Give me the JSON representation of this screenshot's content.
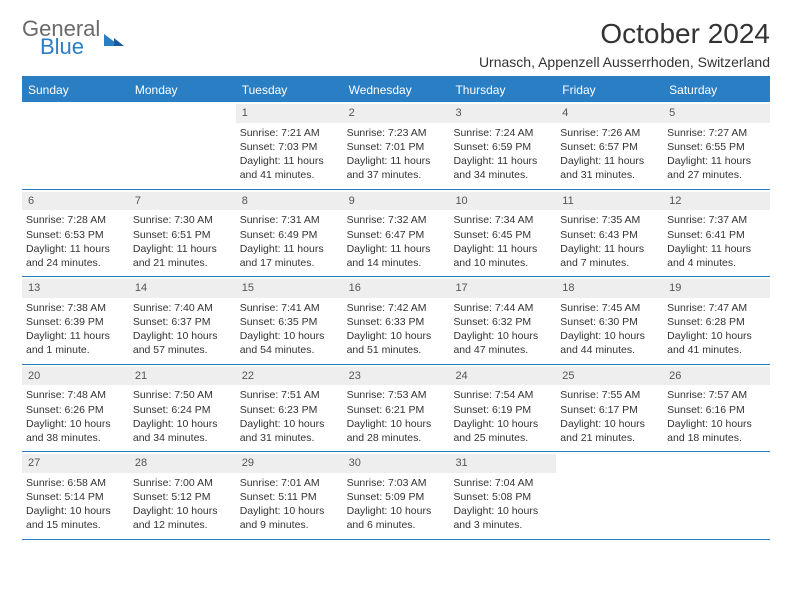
{
  "logo": {
    "word1": "General",
    "word2": "Blue"
  },
  "title": "October 2024",
  "subtitle": "Urnasch, Appenzell Ausserrhoden, Switzerland",
  "colors": {
    "accent": "#2a7ec4",
    "dow_bg": "#2a7ec4",
    "dow_text": "#ffffff",
    "daybar_bg": "#eeeeee",
    "text": "#333333"
  },
  "days_of_week": [
    "Sunday",
    "Monday",
    "Tuesday",
    "Wednesday",
    "Thursday",
    "Friday",
    "Saturday"
  ],
  "weeks": [
    [
      {
        "n": "",
        "sunrise": "",
        "sunset": "",
        "daylight": ""
      },
      {
        "n": "",
        "sunrise": "",
        "sunset": "",
        "daylight": ""
      },
      {
        "n": "1",
        "sunrise": "Sunrise: 7:21 AM",
        "sunset": "Sunset: 7:03 PM",
        "daylight": "Daylight: 11 hours and 41 minutes."
      },
      {
        "n": "2",
        "sunrise": "Sunrise: 7:23 AM",
        "sunset": "Sunset: 7:01 PM",
        "daylight": "Daylight: 11 hours and 37 minutes."
      },
      {
        "n": "3",
        "sunrise": "Sunrise: 7:24 AM",
        "sunset": "Sunset: 6:59 PM",
        "daylight": "Daylight: 11 hours and 34 minutes."
      },
      {
        "n": "4",
        "sunrise": "Sunrise: 7:26 AM",
        "sunset": "Sunset: 6:57 PM",
        "daylight": "Daylight: 11 hours and 31 minutes."
      },
      {
        "n": "5",
        "sunrise": "Sunrise: 7:27 AM",
        "sunset": "Sunset: 6:55 PM",
        "daylight": "Daylight: 11 hours and 27 minutes."
      }
    ],
    [
      {
        "n": "6",
        "sunrise": "Sunrise: 7:28 AM",
        "sunset": "Sunset: 6:53 PM",
        "daylight": "Daylight: 11 hours and 24 minutes."
      },
      {
        "n": "7",
        "sunrise": "Sunrise: 7:30 AM",
        "sunset": "Sunset: 6:51 PM",
        "daylight": "Daylight: 11 hours and 21 minutes."
      },
      {
        "n": "8",
        "sunrise": "Sunrise: 7:31 AM",
        "sunset": "Sunset: 6:49 PM",
        "daylight": "Daylight: 11 hours and 17 minutes."
      },
      {
        "n": "9",
        "sunrise": "Sunrise: 7:32 AM",
        "sunset": "Sunset: 6:47 PM",
        "daylight": "Daylight: 11 hours and 14 minutes."
      },
      {
        "n": "10",
        "sunrise": "Sunrise: 7:34 AM",
        "sunset": "Sunset: 6:45 PM",
        "daylight": "Daylight: 11 hours and 10 minutes."
      },
      {
        "n": "11",
        "sunrise": "Sunrise: 7:35 AM",
        "sunset": "Sunset: 6:43 PM",
        "daylight": "Daylight: 11 hours and 7 minutes."
      },
      {
        "n": "12",
        "sunrise": "Sunrise: 7:37 AM",
        "sunset": "Sunset: 6:41 PM",
        "daylight": "Daylight: 11 hours and 4 minutes."
      }
    ],
    [
      {
        "n": "13",
        "sunrise": "Sunrise: 7:38 AM",
        "sunset": "Sunset: 6:39 PM",
        "daylight": "Daylight: 11 hours and 1 minute."
      },
      {
        "n": "14",
        "sunrise": "Sunrise: 7:40 AM",
        "sunset": "Sunset: 6:37 PM",
        "daylight": "Daylight: 10 hours and 57 minutes."
      },
      {
        "n": "15",
        "sunrise": "Sunrise: 7:41 AM",
        "sunset": "Sunset: 6:35 PM",
        "daylight": "Daylight: 10 hours and 54 minutes."
      },
      {
        "n": "16",
        "sunrise": "Sunrise: 7:42 AM",
        "sunset": "Sunset: 6:33 PM",
        "daylight": "Daylight: 10 hours and 51 minutes."
      },
      {
        "n": "17",
        "sunrise": "Sunrise: 7:44 AM",
        "sunset": "Sunset: 6:32 PM",
        "daylight": "Daylight: 10 hours and 47 minutes."
      },
      {
        "n": "18",
        "sunrise": "Sunrise: 7:45 AM",
        "sunset": "Sunset: 6:30 PM",
        "daylight": "Daylight: 10 hours and 44 minutes."
      },
      {
        "n": "19",
        "sunrise": "Sunrise: 7:47 AM",
        "sunset": "Sunset: 6:28 PM",
        "daylight": "Daylight: 10 hours and 41 minutes."
      }
    ],
    [
      {
        "n": "20",
        "sunrise": "Sunrise: 7:48 AM",
        "sunset": "Sunset: 6:26 PM",
        "daylight": "Daylight: 10 hours and 38 minutes."
      },
      {
        "n": "21",
        "sunrise": "Sunrise: 7:50 AM",
        "sunset": "Sunset: 6:24 PM",
        "daylight": "Daylight: 10 hours and 34 minutes."
      },
      {
        "n": "22",
        "sunrise": "Sunrise: 7:51 AM",
        "sunset": "Sunset: 6:23 PM",
        "daylight": "Daylight: 10 hours and 31 minutes."
      },
      {
        "n": "23",
        "sunrise": "Sunrise: 7:53 AM",
        "sunset": "Sunset: 6:21 PM",
        "daylight": "Daylight: 10 hours and 28 minutes."
      },
      {
        "n": "24",
        "sunrise": "Sunrise: 7:54 AM",
        "sunset": "Sunset: 6:19 PM",
        "daylight": "Daylight: 10 hours and 25 minutes."
      },
      {
        "n": "25",
        "sunrise": "Sunrise: 7:55 AM",
        "sunset": "Sunset: 6:17 PM",
        "daylight": "Daylight: 10 hours and 21 minutes."
      },
      {
        "n": "26",
        "sunrise": "Sunrise: 7:57 AM",
        "sunset": "Sunset: 6:16 PM",
        "daylight": "Daylight: 10 hours and 18 minutes."
      }
    ],
    [
      {
        "n": "27",
        "sunrise": "Sunrise: 6:58 AM",
        "sunset": "Sunset: 5:14 PM",
        "daylight": "Daylight: 10 hours and 15 minutes."
      },
      {
        "n": "28",
        "sunrise": "Sunrise: 7:00 AM",
        "sunset": "Sunset: 5:12 PM",
        "daylight": "Daylight: 10 hours and 12 minutes."
      },
      {
        "n": "29",
        "sunrise": "Sunrise: 7:01 AM",
        "sunset": "Sunset: 5:11 PM",
        "daylight": "Daylight: 10 hours and 9 minutes."
      },
      {
        "n": "30",
        "sunrise": "Sunrise: 7:03 AM",
        "sunset": "Sunset: 5:09 PM",
        "daylight": "Daylight: 10 hours and 6 minutes."
      },
      {
        "n": "31",
        "sunrise": "Sunrise: 7:04 AM",
        "sunset": "Sunset: 5:08 PM",
        "daylight": "Daylight: 10 hours and 3 minutes."
      },
      {
        "n": "",
        "sunrise": "",
        "sunset": "",
        "daylight": ""
      },
      {
        "n": "",
        "sunrise": "",
        "sunset": "",
        "daylight": ""
      }
    ]
  ]
}
